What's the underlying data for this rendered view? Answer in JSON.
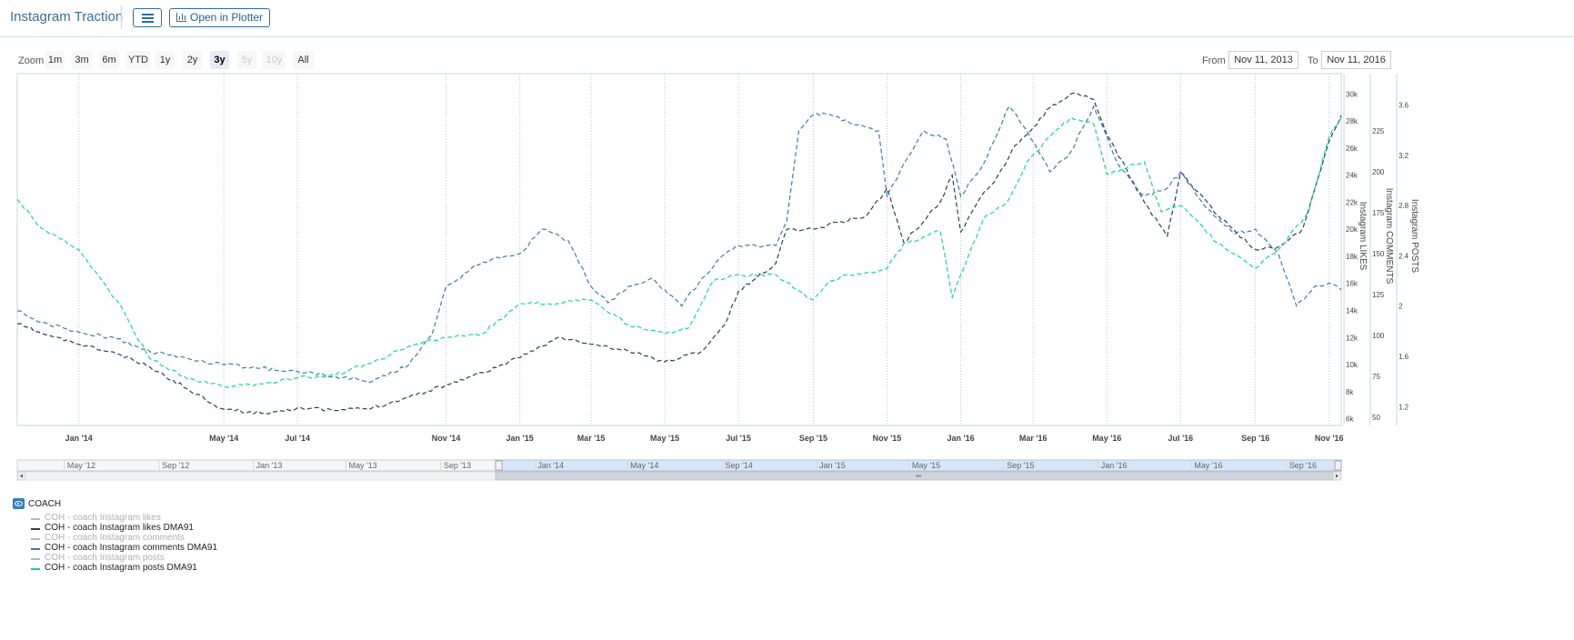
{
  "header": {
    "title": "Instagram Traction",
    "plotter_label": "Open in Plotter"
  },
  "range_selector": {
    "zoom_label": "Zoom",
    "buttons": [
      {
        "label": "1m",
        "state": "normal"
      },
      {
        "label": "3m",
        "state": "normal"
      },
      {
        "label": "6m",
        "state": "normal"
      },
      {
        "label": "YTD",
        "state": "normal"
      },
      {
        "label": "1y",
        "state": "normal"
      },
      {
        "label": "2y",
        "state": "normal"
      },
      {
        "label": "3y",
        "state": "active"
      },
      {
        "label": "5y",
        "state": "disabled"
      },
      {
        "label": "10y",
        "state": "disabled"
      },
      {
        "label": "All",
        "state": "normal"
      }
    ],
    "from_label": "From",
    "from_value": "Nov 11, 2013",
    "to_label": "To",
    "to_value": "Nov 11, 2016"
  },
  "chart_data": {
    "type": "line",
    "x_range": [
      "2013-11-11",
      "2016-11-11"
    ],
    "x_ticks": [
      "Jan '14",
      "May '14",
      "Jul '14",
      "Nov '14",
      "Jan '15",
      "Mar '15",
      "May '15",
      "Jul '15",
      "Sep '15",
      "Nov '15",
      "Jan '16",
      "Mar '16",
      "May '16",
      "Jul '16",
      "Sep '16",
      "Nov '16"
    ],
    "axes": [
      {
        "label": "Instagram LIKES",
        "min": 5500,
        "max": 31500,
        "ticks": [
          "6k",
          "8k",
          "10k",
          "12k",
          "14k",
          "16k",
          "18k",
          "20k",
          "22k",
          "24k",
          "26k",
          "28k",
          "30k"
        ]
      },
      {
        "label": "Instagram COMMENTS",
        "min": 45,
        "max": 260,
        "ticks": [
          "50",
          "75",
          "100",
          "125",
          "150",
          "175",
          "200",
          "225"
        ]
      },
      {
        "label": "Instagram POSTS",
        "min": 1.05,
        "max": 3.85,
        "ticks": [
          "1.2",
          "1.6",
          "2",
          "2.4",
          "2.8",
          "3.2",
          "3.6"
        ]
      }
    ],
    "navigator": {
      "ticks": [
        "May '12",
        "Sep '12",
        "Jan '13",
        "May '13",
        "Sep '13",
        "Jan '14",
        "May '14",
        "Sep '14",
        "Jan '15",
        "May '15",
        "Sep '15",
        "Jan '16",
        "May '16",
        "Sep '16"
      ],
      "x_range": [
        "2012-03-01",
        "2016-11-11"
      ],
      "selected": [
        "2013-11-11",
        "2016-11-11"
      ]
    },
    "series": [
      {
        "name": "COH - coach Instagram likes DMA91",
        "color": "#2b3f55",
        "axis": 0,
        "x": [
          "2013-11-11",
          "2013-12-01",
          "2014-01-01",
          "2014-02-01",
          "2014-03-01",
          "2014-04-01",
          "2014-05-01",
          "2014-06-01",
          "2014-07-01",
          "2014-08-01",
          "2014-09-01",
          "2014-10-01",
          "2014-11-01",
          "2014-12-01",
          "2015-01-01",
          "2015-02-01",
          "2015-03-01",
          "2015-04-01",
          "2015-05-01",
          "2015-06-01",
          "2015-06-20",
          "2015-07-01",
          "2015-08-01",
          "2015-08-10",
          "2015-09-01",
          "2015-09-20",
          "2015-10-15",
          "2015-11-01",
          "2015-11-15",
          "2015-12-15",
          "2015-12-25",
          "2016-01-01",
          "2016-01-15",
          "2016-02-01",
          "2016-02-15",
          "2016-03-01",
          "2016-03-15",
          "2016-04-01",
          "2016-04-20",
          "2016-05-01",
          "2016-06-01",
          "2016-06-20",
          "2016-07-01",
          "2016-08-01",
          "2016-09-01",
          "2016-09-20",
          "2016-10-10",
          "2016-11-01",
          "2016-11-11"
        ],
        "y": [
          13000,
          12300,
          11500,
          10800,
          9800,
          8200,
          6700,
          6400,
          6800,
          6600,
          6800,
          7600,
          8500,
          9400,
          10500,
          12000,
          11500,
          11000,
          10200,
          11000,
          13000,
          15400,
          17500,
          20000,
          20000,
          20500,
          21000,
          23000,
          19000,
          22000,
          24000,
          19800,
          22000,
          24000,
          26200,
          27500,
          29000,
          30000,
          29600,
          27000,
          22000,
          19500,
          24200,
          21000,
          18500,
          18700,
          20000,
          26500,
          28400
        ]
      },
      {
        "name": "COH - coach Instagram comments DMA91",
        "color": "#3d78b4",
        "axis": 1,
        "x": [
          "2013-11-11",
          "2013-12-01",
          "2014-01-01",
          "2014-02-01",
          "2014-03-01",
          "2014-04-01",
          "2014-05-01",
          "2014-06-01",
          "2014-07-01",
          "2014-08-01",
          "2014-09-01",
          "2014-10-01",
          "2014-10-20",
          "2014-11-01",
          "2014-12-01",
          "2015-01-01",
          "2015-01-20",
          "2015-02-10",
          "2015-03-01",
          "2015-03-15",
          "2015-04-01",
          "2015-04-20",
          "2015-05-01",
          "2015-05-15",
          "2015-06-01",
          "2015-06-20",
          "2015-07-01",
          "2015-08-01",
          "2015-08-10",
          "2015-08-20",
          "2015-09-01",
          "2015-09-15",
          "2015-10-01",
          "2015-10-25",
          "2015-11-01",
          "2015-11-15",
          "2015-12-01",
          "2015-12-20",
          "2016-01-01",
          "2016-01-20",
          "2016-02-10",
          "2016-02-25",
          "2016-03-15",
          "2016-04-01",
          "2016-04-20",
          "2016-05-10",
          "2016-06-01",
          "2016-06-20",
          "2016-07-01",
          "2016-07-20",
          "2016-08-15",
          "2016-09-01",
          "2016-09-20",
          "2016-10-05",
          "2016-10-20",
          "2016-11-01",
          "2016-11-11"
        ],
        "y": [
          115,
          108,
          102,
          98,
          90,
          86,
          82,
          80,
          78,
          75,
          72,
          82,
          100,
          130,
          145,
          150,
          165,
          158,
          130,
          120,
          130,
          135,
          128,
          118,
          135,
          150,
          155,
          155,
          170,
          225,
          235,
          235,
          230,
          225,
          185,
          205,
          225,
          220,
          185,
          205,
          240,
          225,
          200,
          212,
          240,
          205,
          185,
          190,
          200,
          180,
          162,
          165,
          150,
          118,
          130,
          132,
          128
        ]
      },
      {
        "name": "COH - coach Instagram posts DMA91",
        "color": "#16d68d",
        "axis": 2,
        "x": [
          "2013-11-11",
          "2013-12-01",
          "2014-01-01",
          "2014-02-01",
          "2014-03-01",
          "2014-04-01",
          "2014-05-01",
          "2014-06-01",
          "2014-07-01",
          "2014-08-01",
          "2014-09-01",
          "2014-10-01",
          "2014-11-01",
          "2014-12-01",
          "2015-01-01",
          "2015-02-01",
          "2015-03-01",
          "2015-04-01",
          "2015-05-01",
          "2015-05-20",
          "2015-06-10",
          "2015-07-01",
          "2015-08-01",
          "2015-08-15",
          "2015-09-01",
          "2015-09-15",
          "2015-10-01",
          "2015-11-01",
          "2015-11-15",
          "2015-12-01",
          "2015-12-15",
          "2015-12-25",
          "2016-01-01",
          "2016-01-20",
          "2016-02-10",
          "2016-02-25",
          "2016-03-15",
          "2016-04-01",
          "2016-04-20",
          "2016-05-01",
          "2016-06-01",
          "2016-06-15",
          "2016-07-01",
          "2016-08-01",
          "2016-09-01",
          "2016-09-20",
          "2016-10-15",
          "2016-11-01",
          "2016-11-11"
        ],
        "y": [
          2.85,
          2.62,
          2.45,
          2.05,
          1.58,
          1.42,
          1.36,
          1.38,
          1.43,
          1.45,
          1.55,
          1.68,
          1.75,
          1.78,
          2.02,
          2.02,
          2.05,
          1.85,
          1.78,
          1.82,
          2.2,
          2.25,
          2.25,
          2.15,
          2.05,
          2.2,
          2.25,
          2.3,
          2.5,
          2.55,
          2.6,
          2.07,
          2.25,
          2.7,
          2.85,
          3.15,
          3.35,
          3.5,
          3.45,
          3.05,
          3.15,
          2.75,
          2.8,
          2.5,
          2.3,
          2.45,
          2.75,
          3.35,
          3.5
        ]
      }
    ]
  },
  "legend": {
    "group_label": "COACH",
    "items": [
      {
        "label": "COH - coach Instagram likes",
        "color": "#b8b8b8",
        "text_color": "#b0b0b0"
      },
      {
        "label": "COH - coach Instagram likes DMA91",
        "color": "#2b3f55",
        "text_color": "#222222"
      },
      {
        "label": "COH - coach Instagram comments",
        "color": "#b8b8b8",
        "text_color": "#b0b0b0"
      },
      {
        "label": "COH - coach Instagram comments DMA91",
        "color": "#3d78b4",
        "text_color": "#222222"
      },
      {
        "label": "COH - coach Instagram posts",
        "color": "#b8b8b8",
        "text_color": "#b0b0b0"
      },
      {
        "label": "COH - coach Instagram posts DMA91",
        "color": "#16d68d",
        "text_color": "#222222"
      }
    ]
  }
}
